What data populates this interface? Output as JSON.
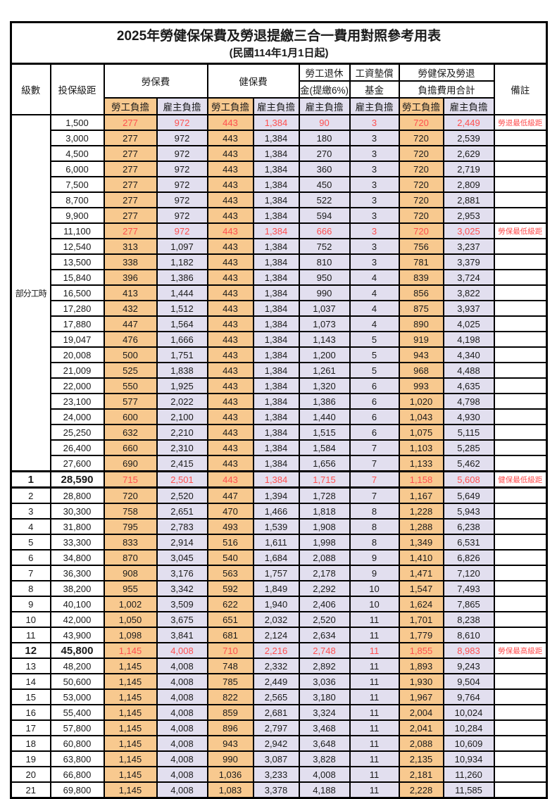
{
  "title": "2025年勞健保保費及勞退提繳三合一費用對照參考用表",
  "subtitle": "(民國114年1月1日起)",
  "colors": {
    "employee_share_bg": "#F8C98F",
    "employer_share_bg": "#E2DFEF",
    "highlight_red": "#FF5050",
    "border": "#000000"
  },
  "header": {
    "level": "級數",
    "bracket": "投保級距",
    "labor_insurance": "勞保費",
    "health_insurance": "健保費",
    "pension_line1": "勞工退休",
    "pension_line2": "金(提繳6%)",
    "wage_fund_line1": "工資墊償",
    "wage_fund_line2": "基金",
    "total_line1": "勞健保及勞退",
    "total_line2": "負擔費用合計",
    "note": "備註",
    "employee": "勞工負擔",
    "employer": "雇主負擔"
  },
  "part_time_label": "部分工時",
  "part_time_row_count": 23,
  "rows": [
    {
      "level": "",
      "bracket": "1,500",
      "values": [
        "277",
        "972",
        "443",
        "1,384",
        "90",
        "3",
        "720",
        "2,449"
      ],
      "note": "勞退最低級距",
      "red": true,
      "bold": false,
      "thick": false
    },
    {
      "level": "",
      "bracket": "3,000",
      "values": [
        "277",
        "972",
        "443",
        "1,384",
        "180",
        "3",
        "720",
        "2,539"
      ],
      "note": "",
      "red": false,
      "bold": false,
      "thick": false
    },
    {
      "level": "",
      "bracket": "4,500",
      "values": [
        "277",
        "972",
        "443",
        "1,384",
        "270",
        "3",
        "720",
        "2,629"
      ],
      "note": "",
      "red": false,
      "bold": false,
      "thick": false
    },
    {
      "level": "",
      "bracket": "6,000",
      "values": [
        "277",
        "972",
        "443",
        "1,384",
        "360",
        "3",
        "720",
        "2,719"
      ],
      "note": "",
      "red": false,
      "bold": false,
      "thick": false
    },
    {
      "level": "",
      "bracket": "7,500",
      "values": [
        "277",
        "972",
        "443",
        "1,384",
        "450",
        "3",
        "720",
        "2,809"
      ],
      "note": "",
      "red": false,
      "bold": false,
      "thick": false
    },
    {
      "level": "",
      "bracket": "8,700",
      "values": [
        "277",
        "972",
        "443",
        "1,384",
        "522",
        "3",
        "720",
        "2,881"
      ],
      "note": "",
      "red": false,
      "bold": false,
      "thick": false
    },
    {
      "level": "",
      "bracket": "9,900",
      "values": [
        "277",
        "972",
        "443",
        "1,384",
        "594",
        "3",
        "720",
        "2,953"
      ],
      "note": "",
      "red": false,
      "bold": false,
      "thick": false
    },
    {
      "level": "",
      "bracket": "11,100",
      "values": [
        "277",
        "972",
        "443",
        "1,384",
        "666",
        "3",
        "720",
        "3,025"
      ],
      "note": "勞保最低級距",
      "red": true,
      "bold": false,
      "thick": false
    },
    {
      "level": "",
      "bracket": "12,540",
      "values": [
        "313",
        "1,097",
        "443",
        "1,384",
        "752",
        "3",
        "756",
        "3,237"
      ],
      "note": "",
      "red": false,
      "bold": false,
      "thick": false
    },
    {
      "level": "",
      "bracket": "13,500",
      "values": [
        "338",
        "1,182",
        "443",
        "1,384",
        "810",
        "3",
        "781",
        "3,379"
      ],
      "note": "",
      "red": false,
      "bold": false,
      "thick": false
    },
    {
      "level": "",
      "bracket": "15,840",
      "values": [
        "396",
        "1,386",
        "443",
        "1,384",
        "950",
        "4",
        "839",
        "3,724"
      ],
      "note": "",
      "red": false,
      "bold": false,
      "thick": false
    },
    {
      "level": "",
      "bracket": "16,500",
      "values": [
        "413",
        "1,444",
        "443",
        "1,384",
        "990",
        "4",
        "856",
        "3,822"
      ],
      "note": "",
      "red": false,
      "bold": false,
      "thick": false
    },
    {
      "level": "",
      "bracket": "17,280",
      "values": [
        "432",
        "1,512",
        "443",
        "1,384",
        "1,037",
        "4",
        "875",
        "3,937"
      ],
      "note": "",
      "red": false,
      "bold": false,
      "thick": false
    },
    {
      "level": "",
      "bracket": "17,880",
      "values": [
        "447",
        "1,564",
        "443",
        "1,384",
        "1,073",
        "4",
        "890",
        "4,025"
      ],
      "note": "",
      "red": false,
      "bold": false,
      "thick": false
    },
    {
      "level": "",
      "bracket": "19,047",
      "values": [
        "476",
        "1,666",
        "443",
        "1,384",
        "1,143",
        "5",
        "919",
        "4,198"
      ],
      "note": "",
      "red": false,
      "bold": false,
      "thick": false
    },
    {
      "level": "",
      "bracket": "20,008",
      "values": [
        "500",
        "1,751",
        "443",
        "1,384",
        "1,200",
        "5",
        "943",
        "4,340"
      ],
      "note": "",
      "red": false,
      "bold": false,
      "thick": false
    },
    {
      "level": "",
      "bracket": "21,009",
      "values": [
        "525",
        "1,838",
        "443",
        "1,384",
        "1,261",
        "5",
        "968",
        "4,488"
      ],
      "note": "",
      "red": false,
      "bold": false,
      "thick": false
    },
    {
      "level": "",
      "bracket": "22,000",
      "values": [
        "550",
        "1,925",
        "443",
        "1,384",
        "1,320",
        "6",
        "993",
        "4,635"
      ],
      "note": "",
      "red": false,
      "bold": false,
      "thick": false
    },
    {
      "level": "",
      "bracket": "23,100",
      "values": [
        "577",
        "2,022",
        "443",
        "1,384",
        "1,386",
        "6",
        "1,020",
        "4,798"
      ],
      "note": "",
      "red": false,
      "bold": false,
      "thick": false
    },
    {
      "level": "",
      "bracket": "24,000",
      "values": [
        "600",
        "2,100",
        "443",
        "1,384",
        "1,440",
        "6",
        "1,043",
        "4,930"
      ],
      "note": "",
      "red": false,
      "bold": false,
      "thick": false
    },
    {
      "level": "",
      "bracket": "25,250",
      "values": [
        "632",
        "2,210",
        "443",
        "1,384",
        "1,515",
        "6",
        "1,075",
        "5,115"
      ],
      "note": "",
      "red": false,
      "bold": false,
      "thick": false
    },
    {
      "level": "",
      "bracket": "26,400",
      "values": [
        "660",
        "2,310",
        "443",
        "1,384",
        "1,584",
        "7",
        "1,103",
        "5,285"
      ],
      "note": "",
      "red": false,
      "bold": false,
      "thick": false
    },
    {
      "level": "",
      "bracket": "27,600",
      "values": [
        "690",
        "2,415",
        "443",
        "1,384",
        "1,656",
        "7",
        "1,133",
        "5,462"
      ],
      "note": "",
      "red": false,
      "bold": false,
      "thick": false
    },
    {
      "level": "1",
      "bracket": "28,590",
      "values": [
        "715",
        "2,501",
        "443",
        "1,384",
        "1,715",
        "7",
        "1,158",
        "5,608"
      ],
      "note": "健保最低級距",
      "red": true,
      "bold": true,
      "thick": true
    },
    {
      "level": "2",
      "bracket": "28,800",
      "values": [
        "720",
        "2,520",
        "447",
        "1,394",
        "1,728",
        "7",
        "1,167",
        "5,649"
      ],
      "note": "",
      "red": false,
      "bold": false,
      "thick": false
    },
    {
      "level": "3",
      "bracket": "30,300",
      "values": [
        "758",
        "2,651",
        "470",
        "1,466",
        "1,818",
        "8",
        "1,228",
        "5,943"
      ],
      "note": "",
      "red": false,
      "bold": false,
      "thick": false
    },
    {
      "level": "4",
      "bracket": "31,800",
      "values": [
        "795",
        "2,783",
        "493",
        "1,539",
        "1,908",
        "8",
        "1,288",
        "6,238"
      ],
      "note": "",
      "red": false,
      "bold": false,
      "thick": false
    },
    {
      "level": "5",
      "bracket": "33,300",
      "values": [
        "833",
        "2,914",
        "516",
        "1,611",
        "1,998",
        "8",
        "1,349",
        "6,531"
      ],
      "note": "",
      "red": false,
      "bold": false,
      "thick": false
    },
    {
      "level": "6",
      "bracket": "34,800",
      "values": [
        "870",
        "3,045",
        "540",
        "1,684",
        "2,088",
        "9",
        "1,410",
        "6,826"
      ],
      "note": "",
      "red": false,
      "bold": false,
      "thick": false
    },
    {
      "level": "7",
      "bracket": "36,300",
      "values": [
        "908",
        "3,176",
        "563",
        "1,757",
        "2,178",
        "9",
        "1,471",
        "7,120"
      ],
      "note": "",
      "red": false,
      "bold": false,
      "thick": false
    },
    {
      "level": "8",
      "bracket": "38,200",
      "values": [
        "955",
        "3,342",
        "592",
        "1,849",
        "2,292",
        "10",
        "1,547",
        "7,493"
      ],
      "note": "",
      "red": false,
      "bold": false,
      "thick": false
    },
    {
      "level": "9",
      "bracket": "40,100",
      "values": [
        "1,002",
        "3,509",
        "622",
        "1,940",
        "2,406",
        "10",
        "1,624",
        "7,865"
      ],
      "note": "",
      "red": false,
      "bold": false,
      "thick": false
    },
    {
      "level": "10",
      "bracket": "42,000",
      "values": [
        "1,050",
        "3,675",
        "651",
        "2,032",
        "2,520",
        "11",
        "1,701",
        "8,238"
      ],
      "note": "",
      "red": false,
      "bold": false,
      "thick": false
    },
    {
      "level": "11",
      "bracket": "43,900",
      "values": [
        "1,098",
        "3,841",
        "681",
        "2,124",
        "2,634",
        "11",
        "1,779",
        "8,610"
      ],
      "note": "",
      "red": false,
      "bold": false,
      "thick": false
    },
    {
      "level": "12",
      "bracket": "45,800",
      "values": [
        "1,145",
        "4,008",
        "710",
        "2,216",
        "2,748",
        "11",
        "1,855",
        "8,983"
      ],
      "note": "勞保最高級距",
      "red": true,
      "bold": true,
      "thick": false
    },
    {
      "level": "13",
      "bracket": "48,200",
      "values": [
        "1,145",
        "4,008",
        "748",
        "2,332",
        "2,892",
        "11",
        "1,893",
        "9,243"
      ],
      "note": "",
      "red": false,
      "bold": false,
      "thick": false
    },
    {
      "level": "14",
      "bracket": "50,600",
      "values": [
        "1,145",
        "4,008",
        "785",
        "2,449",
        "3,036",
        "11",
        "1,930",
        "9,504"
      ],
      "note": "",
      "red": false,
      "bold": false,
      "thick": false
    },
    {
      "level": "15",
      "bracket": "53,000",
      "values": [
        "1,145",
        "4,008",
        "822",
        "2,565",
        "3,180",
        "11",
        "1,967",
        "9,764"
      ],
      "note": "",
      "red": false,
      "bold": false,
      "thick": false
    },
    {
      "level": "16",
      "bracket": "55,400",
      "values": [
        "1,145",
        "4,008",
        "859",
        "2,681",
        "3,324",
        "11",
        "2,004",
        "10,024"
      ],
      "note": "",
      "red": false,
      "bold": false,
      "thick": false
    },
    {
      "level": "17",
      "bracket": "57,800",
      "values": [
        "1,145",
        "4,008",
        "896",
        "2,797",
        "3,468",
        "11",
        "2,041",
        "10,284"
      ],
      "note": "",
      "red": false,
      "bold": false,
      "thick": false
    },
    {
      "level": "18",
      "bracket": "60,800",
      "values": [
        "1,145",
        "4,008",
        "943",
        "2,942",
        "3,648",
        "11",
        "2,088",
        "10,609"
      ],
      "note": "",
      "red": false,
      "bold": false,
      "thick": false
    },
    {
      "level": "19",
      "bracket": "63,800",
      "values": [
        "1,145",
        "4,008",
        "990",
        "3,087",
        "3,828",
        "11",
        "2,135",
        "10,934"
      ],
      "note": "",
      "red": false,
      "bold": false,
      "thick": false
    },
    {
      "level": "20",
      "bracket": "66,800",
      "values": [
        "1,145",
        "4,008",
        "1,036",
        "3,233",
        "4,008",
        "11",
        "2,181",
        "11,260"
      ],
      "note": "",
      "red": false,
      "bold": false,
      "thick": false
    },
    {
      "level": "21",
      "bracket": "69,800",
      "values": [
        "1,145",
        "4,008",
        "1,083",
        "3,378",
        "4,188",
        "11",
        "2,228",
        "11,585"
      ],
      "note": "",
      "red": false,
      "bold": false,
      "thick": false
    }
  ]
}
